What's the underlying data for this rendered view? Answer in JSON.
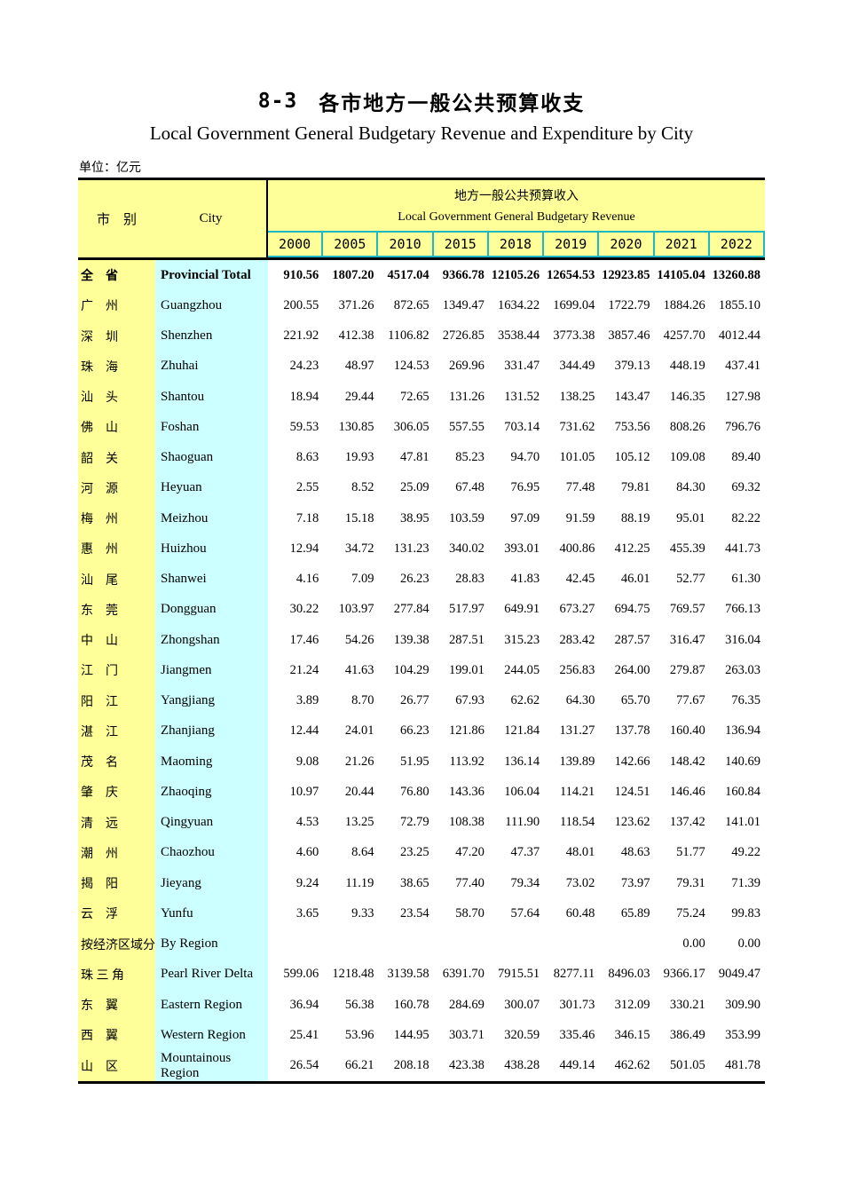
{
  "page": {
    "table_number": "8-3",
    "title_zh": "各市地方一般公共预算收支",
    "title_en": "Local Government General Budgetary Revenue and Expenditure by City",
    "unit_note": "单位：亿元"
  },
  "colors": {
    "header_bg": "#FFFF99",
    "city_column_bg": "#CCFFFF",
    "year_grid_accent": "#1CB8C4",
    "rule": "#000000"
  },
  "table": {
    "header": {
      "city_zh": "市　别",
      "city_en": "City",
      "group_title_zh": "地方一般公共预算收入",
      "group_title_en": "Local Government General Budgetary Revenue",
      "years": [
        "2000",
        "2005",
        "2010",
        "2015",
        "2018",
        "2019",
        "2020",
        "2021",
        "2022"
      ]
    },
    "rows": [
      {
        "zh": "全　省",
        "en": "Provincial Total",
        "bold": true,
        "values": [
          "910.56",
          "1807.20",
          "4517.04",
          "9366.78",
          "12105.26",
          "12654.53",
          "12923.85",
          "14105.04",
          "13260.88"
        ]
      },
      {
        "zh": "广　州",
        "en": "Guangzhou",
        "bold": false,
        "values": [
          "200.55",
          "371.26",
          "872.65",
          "1349.47",
          "1634.22",
          "1699.04",
          "1722.79",
          "1884.26",
          "1855.10"
        ]
      },
      {
        "zh": "深　圳",
        "en": "Shenzhen",
        "bold": false,
        "values": [
          "221.92",
          "412.38",
          "1106.82",
          "2726.85",
          "3538.44",
          "3773.38",
          "3857.46",
          "4257.70",
          "4012.44"
        ]
      },
      {
        "zh": "珠　海",
        "en": "Zhuhai",
        "bold": false,
        "values": [
          "24.23",
          "48.97",
          "124.53",
          "269.96",
          "331.47",
          "344.49",
          "379.13",
          "448.19",
          "437.41"
        ]
      },
      {
        "zh": "汕　头",
        "en": "Shantou",
        "bold": false,
        "values": [
          "18.94",
          "29.44",
          "72.65",
          "131.26",
          "131.52",
          "138.25",
          "143.47",
          "146.35",
          "127.98"
        ]
      },
      {
        "zh": "佛　山",
        "en": "Foshan",
        "bold": false,
        "values": [
          "59.53",
          "130.85",
          "306.05",
          "557.55",
          "703.14",
          "731.62",
          "753.56",
          "808.26",
          "796.76"
        ]
      },
      {
        "zh": "韶　关",
        "en": "Shaoguan",
        "bold": false,
        "values": [
          "8.63",
          "19.93",
          "47.81",
          "85.23",
          "94.70",
          "101.05",
          "105.12",
          "109.08",
          "89.40"
        ]
      },
      {
        "zh": "河　源",
        "en": "Heyuan",
        "bold": false,
        "values": [
          "2.55",
          "8.52",
          "25.09",
          "67.48",
          "76.95",
          "77.48",
          "79.81",
          "84.30",
          "69.32"
        ]
      },
      {
        "zh": "梅　州",
        "en": "Meizhou",
        "bold": false,
        "values": [
          "7.18",
          "15.18",
          "38.95",
          "103.59",
          "97.09",
          "91.59",
          "88.19",
          "95.01",
          "82.22"
        ]
      },
      {
        "zh": "惠　州",
        "en": "Huizhou",
        "bold": false,
        "values": [
          "12.94",
          "34.72",
          "131.23",
          "340.02",
          "393.01",
          "400.86",
          "412.25",
          "455.39",
          "441.73"
        ]
      },
      {
        "zh": "汕　尾",
        "en": "Shanwei",
        "bold": false,
        "values": [
          "4.16",
          "7.09",
          "26.23",
          "28.83",
          "41.83",
          "42.45",
          "46.01",
          "52.77",
          "61.30"
        ]
      },
      {
        "zh": "东　莞",
        "en": "Dongguan",
        "bold": false,
        "values": [
          "30.22",
          "103.97",
          "277.84",
          "517.97",
          "649.91",
          "673.27",
          "694.75",
          "769.57",
          "766.13"
        ]
      },
      {
        "zh": "中　山",
        "en": "Zhongshan",
        "bold": false,
        "values": [
          "17.46",
          "54.26",
          "139.38",
          "287.51",
          "315.23",
          "283.42",
          "287.57",
          "316.47",
          "316.04"
        ]
      },
      {
        "zh": "江　门",
        "en": "Jiangmen",
        "bold": false,
        "values": [
          "21.24",
          "41.63",
          "104.29",
          "199.01",
          "244.05",
          "256.83",
          "264.00",
          "279.87",
          "263.03"
        ]
      },
      {
        "zh": "阳　江",
        "en": "Yangjiang",
        "bold": false,
        "values": [
          "3.89",
          "8.70",
          "26.77",
          "67.93",
          "62.62",
          "64.30",
          "65.70",
          "77.67",
          "76.35"
        ]
      },
      {
        "zh": "湛　江",
        "en": "Zhanjiang",
        "bold": false,
        "values": [
          "12.44",
          "24.01",
          "66.23",
          "121.86",
          "121.84",
          "131.27",
          "137.78",
          "160.40",
          "136.94"
        ]
      },
      {
        "zh": "茂　名",
        "en": "Maoming",
        "bold": false,
        "values": [
          "9.08",
          "21.26",
          "51.95",
          "113.92",
          "136.14",
          "139.89",
          "142.66",
          "148.42",
          "140.69"
        ]
      },
      {
        "zh": "肇　庆",
        "en": "Zhaoqing",
        "bold": false,
        "values": [
          "10.97",
          "20.44",
          "76.80",
          "143.36",
          "106.04",
          "114.21",
          "124.51",
          "146.46",
          "160.84"
        ]
      },
      {
        "zh": "清　远",
        "en": "Qingyuan",
        "bold": false,
        "values": [
          "4.53",
          "13.25",
          "72.79",
          "108.38",
          "111.90",
          "118.54",
          "123.62",
          "137.42",
          "141.01"
        ]
      },
      {
        "zh": "潮　州",
        "en": "Chaozhou",
        "bold": false,
        "values": [
          "4.60",
          "8.64",
          "23.25",
          "47.20",
          "47.37",
          "48.01",
          "48.63",
          "51.77",
          "49.22"
        ]
      },
      {
        "zh": "揭　阳",
        "en": "Jieyang",
        "bold": false,
        "values": [
          "9.24",
          "11.19",
          "38.65",
          "77.40",
          "79.34",
          "73.02",
          "73.97",
          "79.31",
          "71.39"
        ]
      },
      {
        "zh": "云　浮",
        "en": "Yunfu",
        "bold": false,
        "values": [
          "3.65",
          "9.33",
          "23.54",
          "58.70",
          "57.64",
          "60.48",
          "65.89",
          "75.24",
          "99.83"
        ]
      },
      {
        "zh": "按经济区域分",
        "en": "By Region",
        "bold": false,
        "values": [
          "",
          "",
          "",
          "",
          "",
          "",
          "",
          "0.00",
          "0.00"
        ]
      },
      {
        "zh": "珠 三 角",
        "en": "Pearl River Delta",
        "bold": false,
        "values": [
          "599.06",
          "1218.48",
          "3139.58",
          "6391.70",
          "7915.51",
          "8277.11",
          "8496.03",
          "9366.17",
          "9049.47"
        ]
      },
      {
        "zh": "东　翼",
        "en": "Eastern Region",
        "bold": false,
        "values": [
          "36.94",
          "56.38",
          "160.78",
          "284.69",
          "300.07",
          "301.73",
          "312.09",
          "330.21",
          "309.90"
        ]
      },
      {
        "zh": "西　翼",
        "en": "Western Region",
        "bold": false,
        "values": [
          "25.41",
          "53.96",
          "144.95",
          "303.71",
          "320.59",
          "335.46",
          "346.15",
          "386.49",
          "353.99"
        ]
      },
      {
        "zh": "山　区",
        "en": "Mountainous Region",
        "bold": false,
        "values": [
          "26.54",
          "66.21",
          "208.18",
          "423.38",
          "438.28",
          "449.14",
          "462.62",
          "501.05",
          "481.78"
        ]
      }
    ]
  }
}
